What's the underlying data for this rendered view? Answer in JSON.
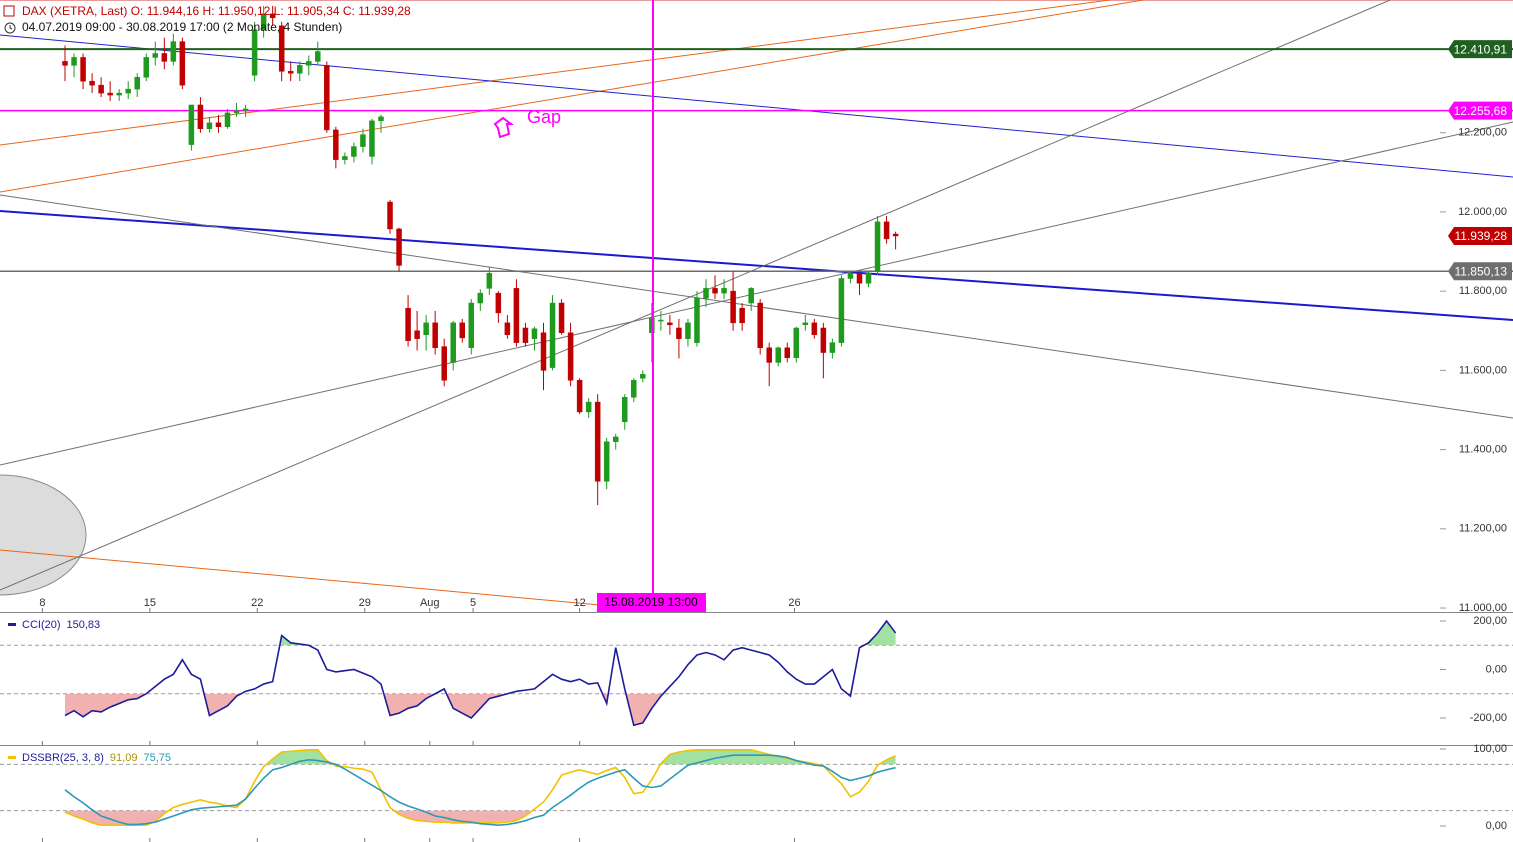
{
  "chart_data": [
    {
      "type": "candlestick",
      "title": "DAX (XETRA, Last)  O: 11.944,16  H: 11.950,12  L: 11.905,34  C: 11.939,28",
      "subtitle": "04.07.2019 09:00 - 30.08.2019 17:00   (2 Monate, 4 Stunden)",
      "annotation": "Gap",
      "marker_label": "15.08.2019 13:00",
      "up_color": "#1e9a1e",
      "down_color": "#c00000",
      "xlim": [
        -7.2,
        152.3
      ],
      "ylim": [
        10990,
        12535
      ],
      "xticks": [
        {
          "value": -2.5,
          "label": "8"
        },
        {
          "value": 9.4,
          "label": "15"
        },
        {
          "value": 21.3,
          "label": "22"
        },
        {
          "value": 33.2,
          "label": "29"
        },
        {
          "value": 40.4,
          "label": "Aug"
        },
        {
          "value": 45.2,
          "label": "5"
        },
        {
          "value": 57.0,
          "label": "12"
        },
        {
          "value": 80.8,
          "label": "26"
        }
      ],
      "yticks": [
        {
          "value": 11000,
          "label": "11.000,00"
        },
        {
          "value": 11200,
          "label": "11.200,00"
        },
        {
          "value": 11400,
          "label": "11.400,00"
        },
        {
          "value": 11600,
          "label": "11.600,00"
        },
        {
          "value": 11800,
          "label": "11.800,00"
        },
        {
          "value": 12000,
          "label": "12.000,00"
        },
        {
          "value": 12200,
          "label": "12.200,00"
        }
      ],
      "price_lines": [
        {
          "value": 12410.91,
          "label": "12.410,91",
          "color": "#1f5f1f",
          "line": true
        },
        {
          "value": 12255.68,
          "label": "12.255,68",
          "color": "#ff00ff",
          "line": true
        },
        {
          "value": 11939.28,
          "label": "11.939,28",
          "color": "#c00000",
          "line": false
        },
        {
          "value": 11850.13,
          "label": "11.850,13",
          "color": "#6e6e6e",
          "line": true
        }
      ],
      "open": [
        12380,
        12370,
        12390,
        12330,
        12320,
        12300,
        12295,
        12300,
        12310,
        12340,
        12390,
        12400,
        12380,
        12430,
        12170,
        12270,
        12210,
        12225,
        12215,
        12250,
        12255,
        12345,
        12460,
        12500,
        12470,
        12355,
        12350,
        12370,
        12380,
        12370,
        12207,
        12132,
        12140,
        12165,
        12140,
        12230,
        12025,
        11957,
        11757,
        11700,
        11690,
        11720,
        11660,
        11620,
        11720,
        11657,
        11770,
        11807,
        11795,
        11720,
        11807,
        11707,
        11680,
        11695,
        11607,
        11770,
        11695,
        11575,
        11495,
        11520,
        11320,
        11420,
        11470,
        11532,
        11580,
        11695,
        11725,
        11720,
        11707,
        11680,
        11670,
        11782,
        11807,
        11795,
        11800,
        11757,
        11770,
        11770,
        11657,
        11620,
        11657,
        11632,
        11715,
        11720,
        11707,
        11645,
        11670,
        11832,
        11845,
        11820,
        11850,
        11975,
        11944.16
      ],
      "high": [
        12420,
        12400,
        12400,
        12350,
        12340,
        12330,
        12310,
        12330,
        12350,
        12400,
        12430,
        12440,
        12450,
        12440,
        12270,
        12290,
        12240,
        12245,
        12260,
        12275,
        12270,
        12480,
        12520,
        12520,
        12480,
        12380,
        12380,
        12395,
        12430,
        12380,
        12215,
        12150,
        12175,
        12210,
        12235,
        12245,
        12030,
        11960,
        11790,
        11750,
        11740,
        11750,
        11680,
        11725,
        11730,
        11780,
        11805,
        11860,
        11800,
        11740,
        11830,
        11720,
        11710,
        11720,
        11790,
        11780,
        11720,
        11580,
        11530,
        11540,
        11430,
        11440,
        11540,
        11580,
        11600,
        11770,
        11750,
        11740,
        11730,
        11730,
        11800,
        11830,
        11840,
        11830,
        11850,
        11770,
        11810,
        11780,
        11670,
        11660,
        11670,
        11710,
        11740,
        11730,
        11720,
        11680,
        11840,
        11850,
        11850,
        11850,
        11990,
        11990,
        11950.12
      ],
      "low": [
        12330,
        12340,
        12310,
        12300,
        12290,
        12280,
        12280,
        12285,
        12290,
        12330,
        12370,
        12360,
        12370,
        12310,
        12155,
        12200,
        12200,
        12200,
        12210,
        12240,
        12240,
        12330,
        12440,
        12470,
        12330,
        12330,
        12330,
        12345,
        12370,
        12200,
        12110,
        12120,
        12125,
        12150,
        12120,
        12200,
        11945,
        11850,
        11660,
        11650,
        11650,
        11640,
        11560,
        11600,
        11670,
        11640,
        11750,
        11790,
        11720,
        11680,
        11660,
        11660,
        11650,
        11550,
        11600,
        11690,
        11560,
        11490,
        11480,
        11260,
        11300,
        11400,
        11450,
        11520,
        11570,
        11620,
        11700,
        11690,
        11630,
        11660,
        11660,
        11760,
        11780,
        11780,
        11700,
        11700,
        11750,
        11640,
        11560,
        11610,
        11620,
        11620,
        11700,
        11680,
        11580,
        11630,
        11660,
        11820,
        11790,
        11810,
        11840,
        11920,
        11905.34
      ],
      "close": [
        12370,
        12390,
        12330,
        12320,
        12300,
        12295,
        12300,
        12310,
        12340,
        12390,
        12400,
        12380,
        12430,
        12320,
        12270,
        12210,
        12225,
        12215,
        12250,
        12255,
        12260,
        12460,
        12500,
        12490,
        12355,
        12350,
        12370,
        12380,
        12405,
        12207,
        12132,
        12140,
        12165,
        12195,
        12230,
        12240,
        11957,
        11865,
        11675,
        11680,
        11720,
        11657,
        11575,
        11720,
        11682,
        11770,
        11795,
        11845,
        11745,
        11690,
        11670,
        11670,
        11705,
        11600,
        11770,
        11695,
        11575,
        11495,
        11520,
        11320,
        11420,
        11432,
        11532,
        11575,
        11590,
        11732,
        11727,
        11715,
        11680,
        11720,
        11782,
        11807,
        11795,
        11807,
        11720,
        11720,
        11807,
        11657,
        11620,
        11657,
        11632,
        11707,
        11720,
        11690,
        11645,
        11670,
        11832,
        11845,
        11820,
        11845,
        11975,
        11932,
        11939.28
      ]
    },
    {
      "type": "line",
      "xlim": [
        -7.2,
        152.3
      ],
      "ylim": [
        -311.3,
        237.1
      ],
      "yticks": [
        {
          "value": 200,
          "label": "200,00"
        },
        {
          "value": 0,
          "label": "0,00"
        },
        {
          "value": -200,
          "label": "-200,00"
        }
      ],
      "levels": [
        100,
        -100
      ],
      "bands": [
        {
          "level": 100,
          "side": "above",
          "color": "#93dc93"
        },
        {
          "level": -100,
          "side": "below",
          "color": "#f0a3a3"
        }
      ],
      "series": [
        {
          "name": "CCI(20)",
          "color": "#1c1c9c",
          "last_value_label": "150,83",
          "values": [
            -190,
            -170,
            -195,
            -170,
            -175,
            -155,
            -140,
            -125,
            -120,
            -100,
            -70,
            -40,
            -20,
            40,
            -20,
            -40,
            -190,
            -170,
            -150,
            -110,
            -90,
            -80,
            -60,
            -50,
            140,
            110,
            105,
            100,
            80,
            0,
            -10,
            -5,
            0,
            -15,
            -30,
            -60,
            -190,
            -180,
            -160,
            -150,
            -120,
            -100,
            -80,
            -160,
            -180,
            -200,
            -160,
            -120,
            -110,
            -100,
            -90,
            -85,
            -80,
            -50,
            -20,
            -40,
            -50,
            -40,
            -60,
            -55,
            -140,
            90,
            -80,
            -230,
            -220,
            -160,
            -110,
            -70,
            -30,
            20,
            60,
            70,
            60,
            40,
            80,
            90,
            80,
            70,
            60,
            30,
            -10,
            -40,
            -60,
            -60,
            -30,
            0,
            -80,
            -110,
            90,
            110,
            150,
            200,
            150.83
          ]
        }
      ]
    },
    {
      "type": "line",
      "xlim": [
        -7.2,
        152.3
      ],
      "ylim": [
        -20.8,
        105.2
      ],
      "yticks": [
        {
          "value": 100,
          "label": "100,00"
        },
        {
          "value": 0,
          "label": "0,00"
        }
      ],
      "levels": [
        80,
        20
      ],
      "bands": [
        {
          "level": 80,
          "side": "above",
          "color": "#93dc93"
        },
        {
          "level": 20,
          "side": "below",
          "color": "#f0a3a3"
        }
      ],
      "series": [
        {
          "name": "DSSBR(25, 3, 8)",
          "color": "#f2c200",
          "last_value_label": "91,09",
          "values": [
            18,
            13,
            9,
            4,
            1,
            1,
            1,
            1,
            1,
            1,
            6,
            16,
            24,
            28,
            31,
            34,
            31,
            29,
            26,
            24,
            35,
            58,
            77,
            87,
            96,
            97,
            98,
            99,
            99,
            85,
            78,
            77,
            75,
            74,
            70,
            47,
            24,
            15,
            10,
            7,
            6,
            5,
            5,
            4,
            4,
            4,
            4,
            4,
            4,
            5,
            7,
            13,
            22,
            31,
            47,
            66,
            70,
            73,
            70,
            67,
            72,
            76,
            63,
            42,
            44,
            60,
            81,
            93,
            96,
            98,
            99,
            99,
            99,
            99,
            99,
            99,
            99,
            96,
            93,
            90,
            88,
            85,
            83,
            81,
            78,
            66,
            55,
            38,
            44,
            58,
            79,
            86,
            91.09
          ]
        },
        {
          "color": "#2a9ab8",
          "last_value_label": "75,75",
          "values": [
            47,
            38,
            30,
            21,
            13,
            9,
            5,
            2,
            2,
            3,
            5,
            9,
            13,
            17,
            21,
            23,
            24,
            25,
            26,
            27,
            35,
            49,
            62,
            73,
            76,
            80,
            84,
            86,
            85,
            83,
            80,
            74,
            67,
            60,
            53,
            46,
            38,
            31,
            26,
            22,
            18,
            13,
            11,
            8,
            6,
            5,
            3,
            2,
            1,
            2,
            4,
            7,
            11,
            14,
            24,
            32,
            40,
            49,
            57,
            62,
            66,
            70,
            73,
            62,
            52,
            50,
            52,
            61,
            70,
            79,
            82,
            85,
            88,
            90,
            92,
            92,
            92,
            92,
            92,
            91,
            89,
            85,
            82,
            79,
            78,
            71,
            63,
            59,
            62,
            65,
            70,
            73,
            75.75
          ]
        }
      ]
    }
  ]
}
